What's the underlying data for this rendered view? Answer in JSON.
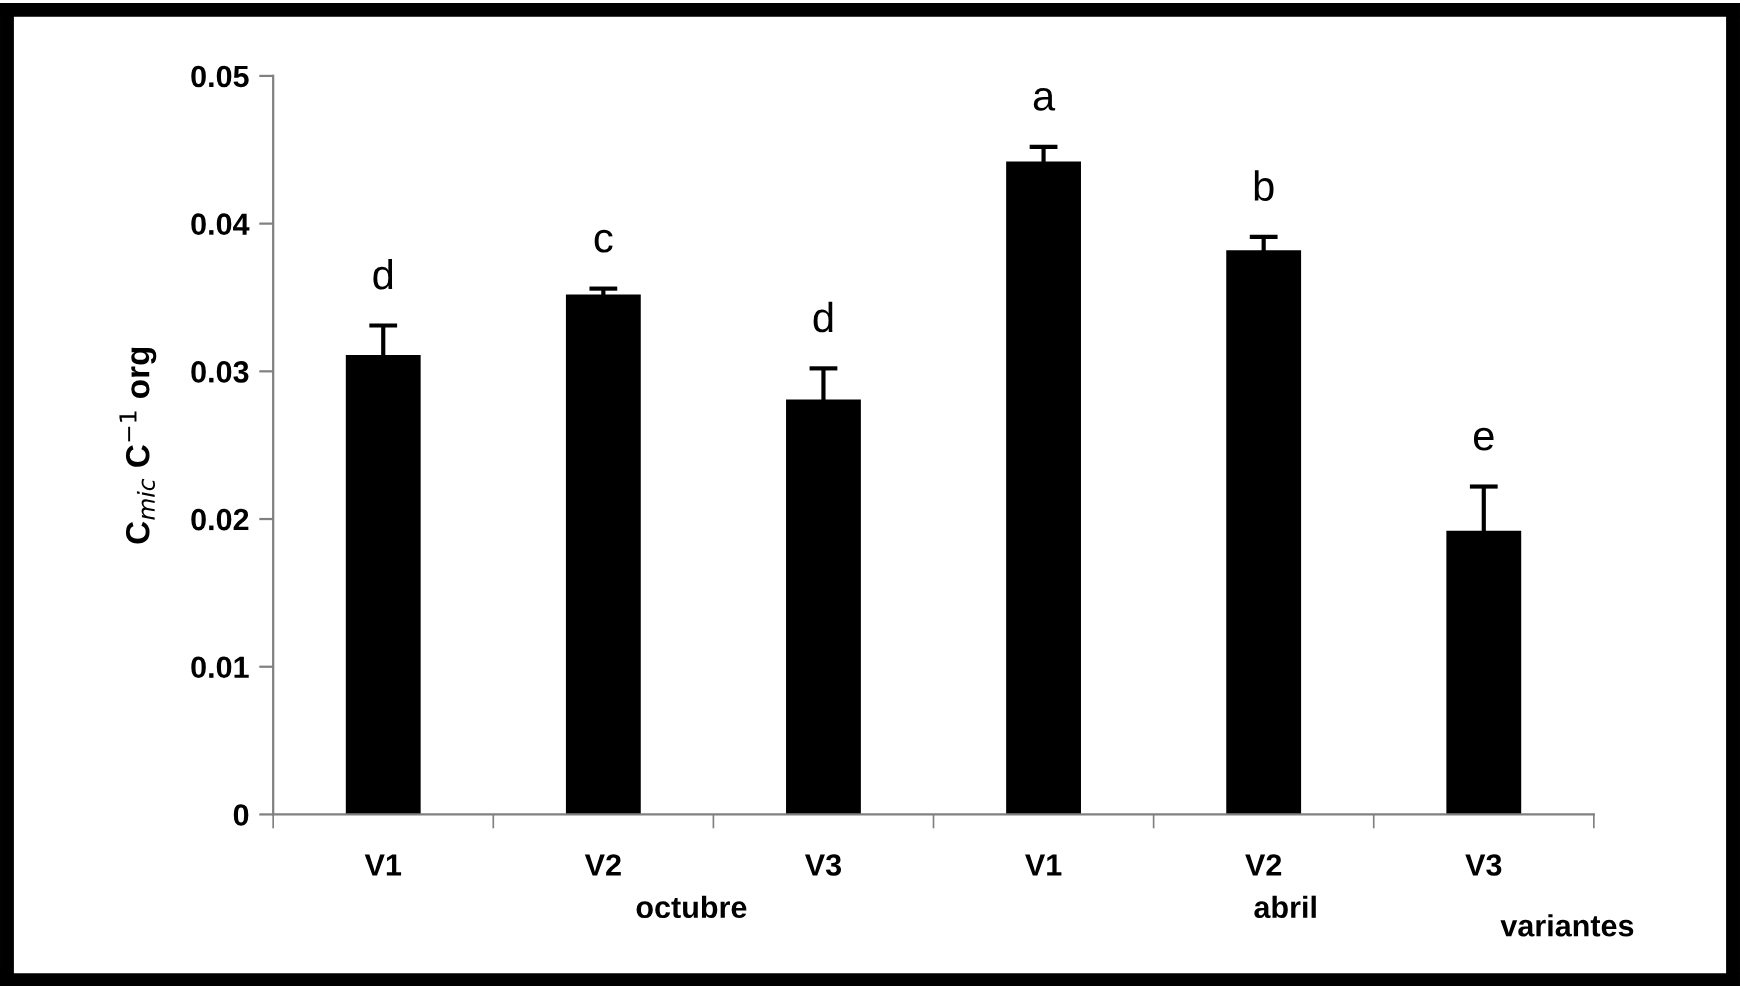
{
  "chart_data": {
    "type": "bar",
    "ylabel": "C$_{mic}$ C$^{−1}$ org",
    "xlabel": "variantes",
    "categories": [
      "V1",
      "V2",
      "V3",
      "V1",
      "V2",
      "V3"
    ],
    "values": [
      0.0311,
      0.0352,
      0.0281,
      0.0442,
      0.0382,
      0.0192
    ],
    "errors": [
      0.002,
      0.0004,
      0.0021,
      0.001,
      0.0009,
      0.003
    ],
    "value_labels": [
      "d",
      "c",
      "d",
      "a",
      "b",
      "e"
    ],
    "color": "#000000",
    "ylim": [
      0,
      0.05
    ],
    "yticks": [
      0,
      0.01,
      0.02,
      0.03,
      0.04,
      0.05
    ],
    "annotations": [
      "octubre",
      "abril"
    ],
    "grid": false,
    "legend": false
  }
}
